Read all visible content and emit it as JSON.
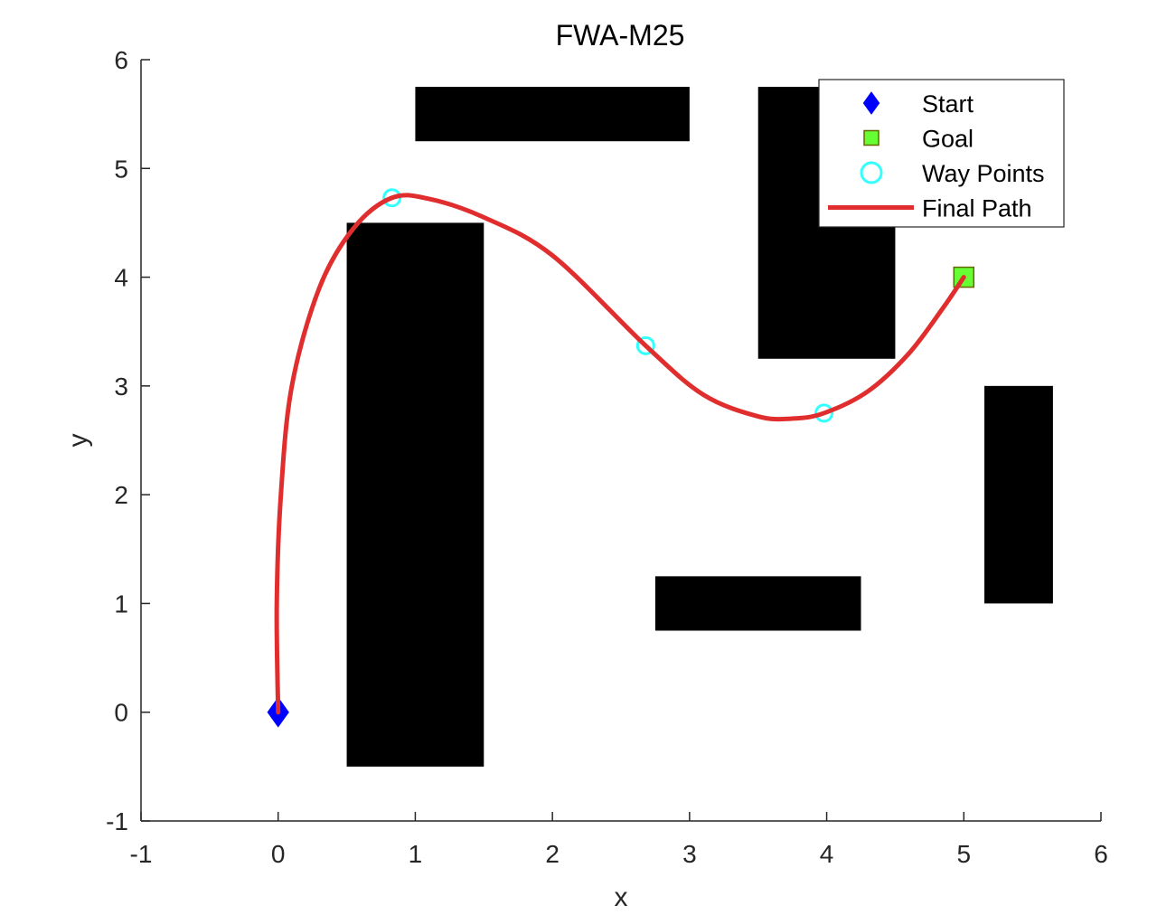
{
  "chart_data": {
    "type": "scatter",
    "title": "FWA-M25",
    "xlabel": "x",
    "ylabel": "y",
    "xlim": [
      -1,
      6
    ],
    "ylim": [
      -1,
      6
    ],
    "xticks": [
      "-1",
      "0",
      "1",
      "2",
      "3",
      "4",
      "5",
      "6"
    ],
    "yticks": [
      "-1",
      "0",
      "1",
      "2",
      "3",
      "4",
      "5",
      "6"
    ],
    "grid": false,
    "legend_position": "top-right",
    "obstacles": [
      {
        "x_range": [
          1.0,
          3.0
        ],
        "y_range": [
          5.25,
          5.75
        ]
      },
      {
        "x_range": [
          3.5,
          4.5
        ],
        "y_range": [
          3.25,
          5.75
        ]
      },
      {
        "x_range": [
          0.5,
          1.5
        ],
        "y_range": [
          -0.5,
          4.5
        ]
      },
      {
        "x_range": [
          5.15,
          5.65
        ],
        "y_range": [
          1.0,
          3.0
        ]
      },
      {
        "x_range": [
          2.75,
          4.25
        ],
        "y_range": [
          0.75,
          1.25
        ]
      }
    ],
    "series": [
      {
        "name": "Start",
        "marker": "diamond",
        "color": "#0000ff",
        "points": [
          [
            0,
            0
          ]
        ]
      },
      {
        "name": "Goal",
        "marker": "square",
        "color": "#66ff33",
        "edge_color": "#666600",
        "points": [
          [
            5,
            4
          ]
        ]
      },
      {
        "name": "Way Points",
        "marker": "circle",
        "color": "#33ffff",
        "points": [
          [
            0.83,
            4.73
          ],
          [
            2.68,
            3.37
          ],
          [
            3.98,
            2.75
          ]
        ]
      },
      {
        "name": "Final Path",
        "marker": "line",
        "color": "#e02d2d",
        "points": [
          [
            0.0,
            0.0
          ],
          [
            -0.01,
            1.0
          ],
          [
            0.02,
            2.0
          ],
          [
            0.1,
            3.0
          ],
          [
            0.3,
            3.9
          ],
          [
            0.55,
            4.45
          ],
          [
            0.83,
            4.73
          ],
          [
            1.1,
            4.72
          ],
          [
            1.5,
            4.55
          ],
          [
            2.0,
            4.2
          ],
          [
            2.68,
            3.37
          ],
          [
            3.1,
            2.92
          ],
          [
            3.5,
            2.72
          ],
          [
            3.75,
            2.7
          ],
          [
            3.98,
            2.75
          ],
          [
            4.3,
            2.95
          ],
          [
            4.6,
            3.3
          ],
          [
            4.85,
            3.72
          ],
          [
            5.0,
            4.0
          ]
        ]
      }
    ]
  },
  "colors": {
    "obstacle": "#000000",
    "axis": "#262626",
    "legend_border": "#262626"
  }
}
